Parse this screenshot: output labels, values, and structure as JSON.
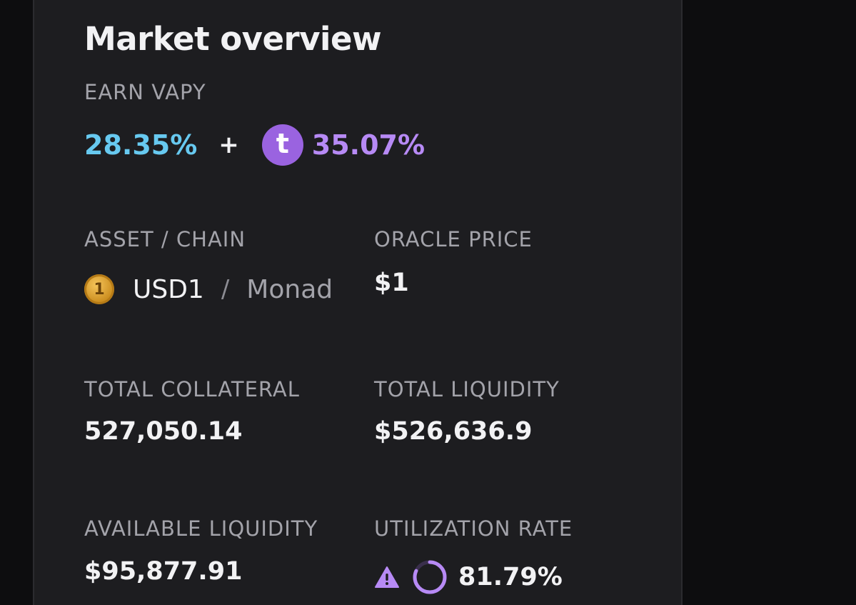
{
  "panel": {
    "title": "Market overview"
  },
  "earn": {
    "label": "EARN VAPY",
    "base_apy": "28.35%",
    "plus": "+",
    "bonus_token_icon": "t-token-icon",
    "bonus_token_letter": "t",
    "bonus_apy": "35.07%",
    "colors": {
      "base": "#67c9f0",
      "bonus": "#b78af5"
    }
  },
  "asset_chain": {
    "label": "ASSET / CHAIN",
    "asset_icon": "usd1-coin-icon",
    "asset_icon_text": "1",
    "asset": "USD1",
    "separator": "/",
    "chain": "Monad"
  },
  "oracle_price": {
    "label": "ORACLE PRICE",
    "value": "$1"
  },
  "total_collateral": {
    "label": "TOTAL COLLATERAL",
    "value": "527,050.14"
  },
  "total_liquidity": {
    "label": "TOTAL LIQUIDITY",
    "value": "$526,636.9"
  },
  "available_liquidity": {
    "label": "AVAILABLE LIQUIDITY",
    "value": "$95,877.91"
  },
  "utilization": {
    "label": "UTILIZATION RATE",
    "warning_icon": "warning-triangle-icon",
    "ring_icon": "utilization-ring-icon",
    "value": "81.79%",
    "fraction": 0.8179,
    "accent": "#b78af5"
  }
}
